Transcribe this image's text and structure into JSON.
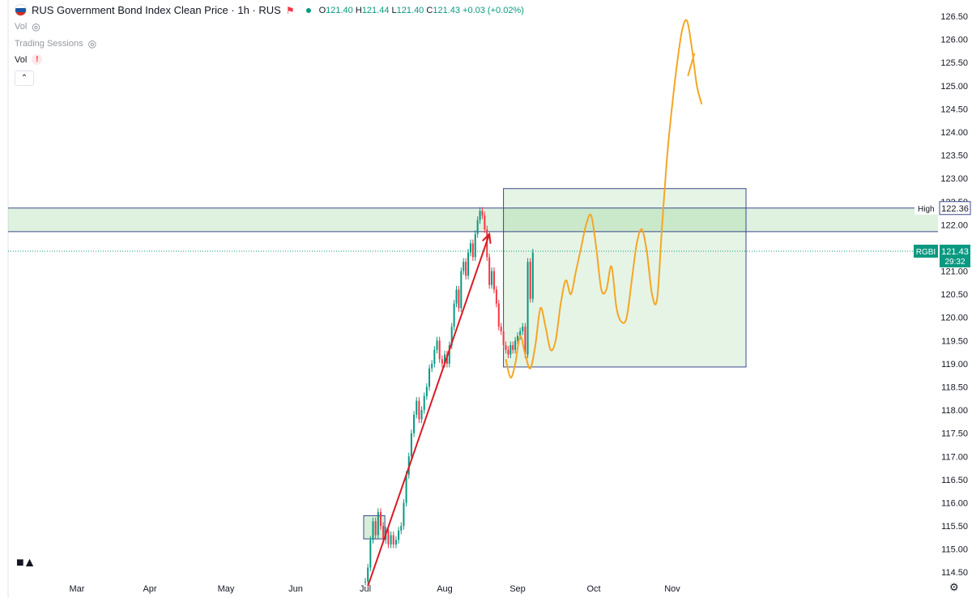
{
  "header": {
    "title": "RUS Government Bond Index Clean Price · 1h · RUS",
    "ohlc": {
      "o_label": "O",
      "o": "121.40",
      "h_label": "H",
      "h": "121.44",
      "l_label": "L",
      "l": "121.40",
      "c_label": "C",
      "c": "121.43",
      "change": "+0.03 (+0.02%)"
    },
    "vol1": "Vol",
    "trading_sessions": "Trading Sessions",
    "vol2": "Vol",
    "warn_icon": "!",
    "collapse": "^"
  },
  "colors": {
    "up": "#089981",
    "down": "#f23645",
    "zone": "#4caf50",
    "line": "#3a4a8c",
    "arrow": "#d81b24",
    "path": "#f5a623"
  },
  "chart_data": {
    "type": "line",
    "title": "RUS Government Bond Index Clean Price",
    "interval": "1h",
    "ylim": [
      114.2,
      126.6
    ],
    "x_labels": [
      "Mar",
      "Apr",
      "May",
      "Jun",
      "Jul",
      "Aug",
      "Sep",
      "Oct",
      "Nov"
    ],
    "y_ticks": [
      114.5,
      115.0,
      115.5,
      116.0,
      116.5,
      117.0,
      117.5,
      118.0,
      118.5,
      119.0,
      119.5,
      120.0,
      120.5,
      121.0,
      121.5,
      122.0,
      122.5,
      123.0,
      123.5,
      124.0,
      124.5,
      125.0,
      125.5,
      126.0,
      126.5
    ],
    "price_series": {
      "x": [
        "Jul 1",
        "Jul 2",
        "Jul 3",
        "Jul 4",
        "Jul 5",
        "Jul 6",
        "Jul 7",
        "Jul 8",
        "Jul 9",
        "Jul 10",
        "Jul 11",
        "Jul 12",
        "Jul 13",
        "Jul 14",
        "Jul 15",
        "Jul 16",
        "Jul 17",
        "Jul 18",
        "Jul 19",
        "Jul 20",
        "Jul 21",
        "Jul 22",
        "Jul 23",
        "Jul 24",
        "Jul 25",
        "Jul 26",
        "Jul 27",
        "Jul 28",
        "Jul 29",
        "Jul 30",
        "Jul 31",
        "Aug 1",
        "Aug 2",
        "Aug 3",
        "Aug 4",
        "Aug 5",
        "Aug 6",
        "Aug 7",
        "Aug 8",
        "Aug 9",
        "Aug 10",
        "Aug 11",
        "Aug 12",
        "Aug 13",
        "Aug 14",
        "Aug 15",
        "Aug 16",
        "Aug 17",
        "Aug 18",
        "Aug 19",
        "Aug 20",
        "Aug 21",
        "Aug 22",
        "Aug 23",
        "Aug 24",
        "Aug 25",
        "Aug 26",
        "Aug 27",
        "Aug 28",
        "Aug 29",
        "Aug 30",
        "Aug 31",
        "Sep 1",
        "Sep 2",
        "Sep 3",
        "Sep 4",
        "Sep 5",
        "Sep 6",
        "Sep 7"
      ],
      "y": [
        114.3,
        114.6,
        115.2,
        115.6,
        115.3,
        115.8,
        115.5,
        115.2,
        115.4,
        115.1,
        115.3,
        115.1,
        115.2,
        115.4,
        115.5,
        116.0,
        116.6,
        117.0,
        117.5,
        117.9,
        118.2,
        117.8,
        118.0,
        118.3,
        118.5,
        118.9,
        119.0,
        119.3,
        119.5,
        119.1,
        119.0,
        119.2,
        119.0,
        119.4,
        119.8,
        120.3,
        120.6,
        120.2,
        121.0,
        121.2,
        120.9,
        121.4,
        121.6,
        121.3,
        121.8,
        122.1,
        122.3,
        122.2,
        121.9,
        121.3,
        120.7,
        121.0,
        120.6,
        120.3,
        119.8,
        119.7,
        119.4,
        119.3,
        119.2,
        119.4,
        119.3,
        119.5,
        119.6,
        119.7,
        119.8,
        119.2,
        121.2,
        120.4,
        121.4
      ]
    },
    "high_label": "High",
    "high_value": "122.36",
    "high_line": 122.36,
    "support_line": 121.85,
    "last_label": "RGBI",
    "last_value": "121.43",
    "countdown": "29:32",
    "last_price": 121.43,
    "consolidation_box": {
      "x_start": "Jul 1",
      "x_end": "Jul 8",
      "y_low": 115.22,
      "y_high": 115.72
    },
    "target_zone": {
      "x_start": "Aug 26",
      "x_end": "Dec 1",
      "y_low": 118.93,
      "y_high": 122.78
    },
    "trend_arrow": {
      "x_start": "Jul 2",
      "x_end": "Aug 20",
      "y_start": 114.2,
      "y_end": 121.8
    },
    "projection": {
      "x": [
        "Aug 27",
        "Aug 29",
        "Aug 31",
        "Sep 2",
        "Sep 4",
        "Sep 6",
        "Sep 8",
        "Sep 10",
        "Sep 12",
        "Sep 14",
        "Sep 16",
        "Sep 18",
        "Sep 20",
        "Sep 22",
        "Sep 24",
        "Sep 26",
        "Sep 28",
        "Sep 30",
        "Oct 2",
        "Oct 4",
        "Oct 6",
        "Oct 8",
        "Oct 10",
        "Oct 12",
        "Oct 14",
        "Oct 16",
        "Oct 18",
        "Oct 20",
        "Oct 22",
        "Oct 24",
        "Oct 26",
        "Oct 28",
        "Oct 30",
        "Nov 1",
        "Nov 3",
        "Nov 5",
        "Nov 7",
        "Nov 9",
        "Nov 11",
        "Nov 13"
      ],
      "y": [
        119.1,
        118.7,
        119.0,
        119.6,
        119.2,
        118.9,
        119.4,
        120.2,
        119.8,
        119.3,
        119.5,
        120.3,
        120.8,
        120.5,
        121.0,
        121.5,
        122.0,
        122.2,
        121.5,
        120.6,
        120.6,
        121.1,
        120.2,
        119.9,
        120.0,
        120.8,
        121.6,
        121.9,
        121.4,
        120.5,
        120.4,
        122.0,
        123.5,
        124.6,
        125.5,
        126.2,
        126.4,
        125.8,
        125.0,
        124.6
      ]
    },
    "arrowhead": {
      "x": "Nov 10",
      "y": 125.7
    }
  }
}
